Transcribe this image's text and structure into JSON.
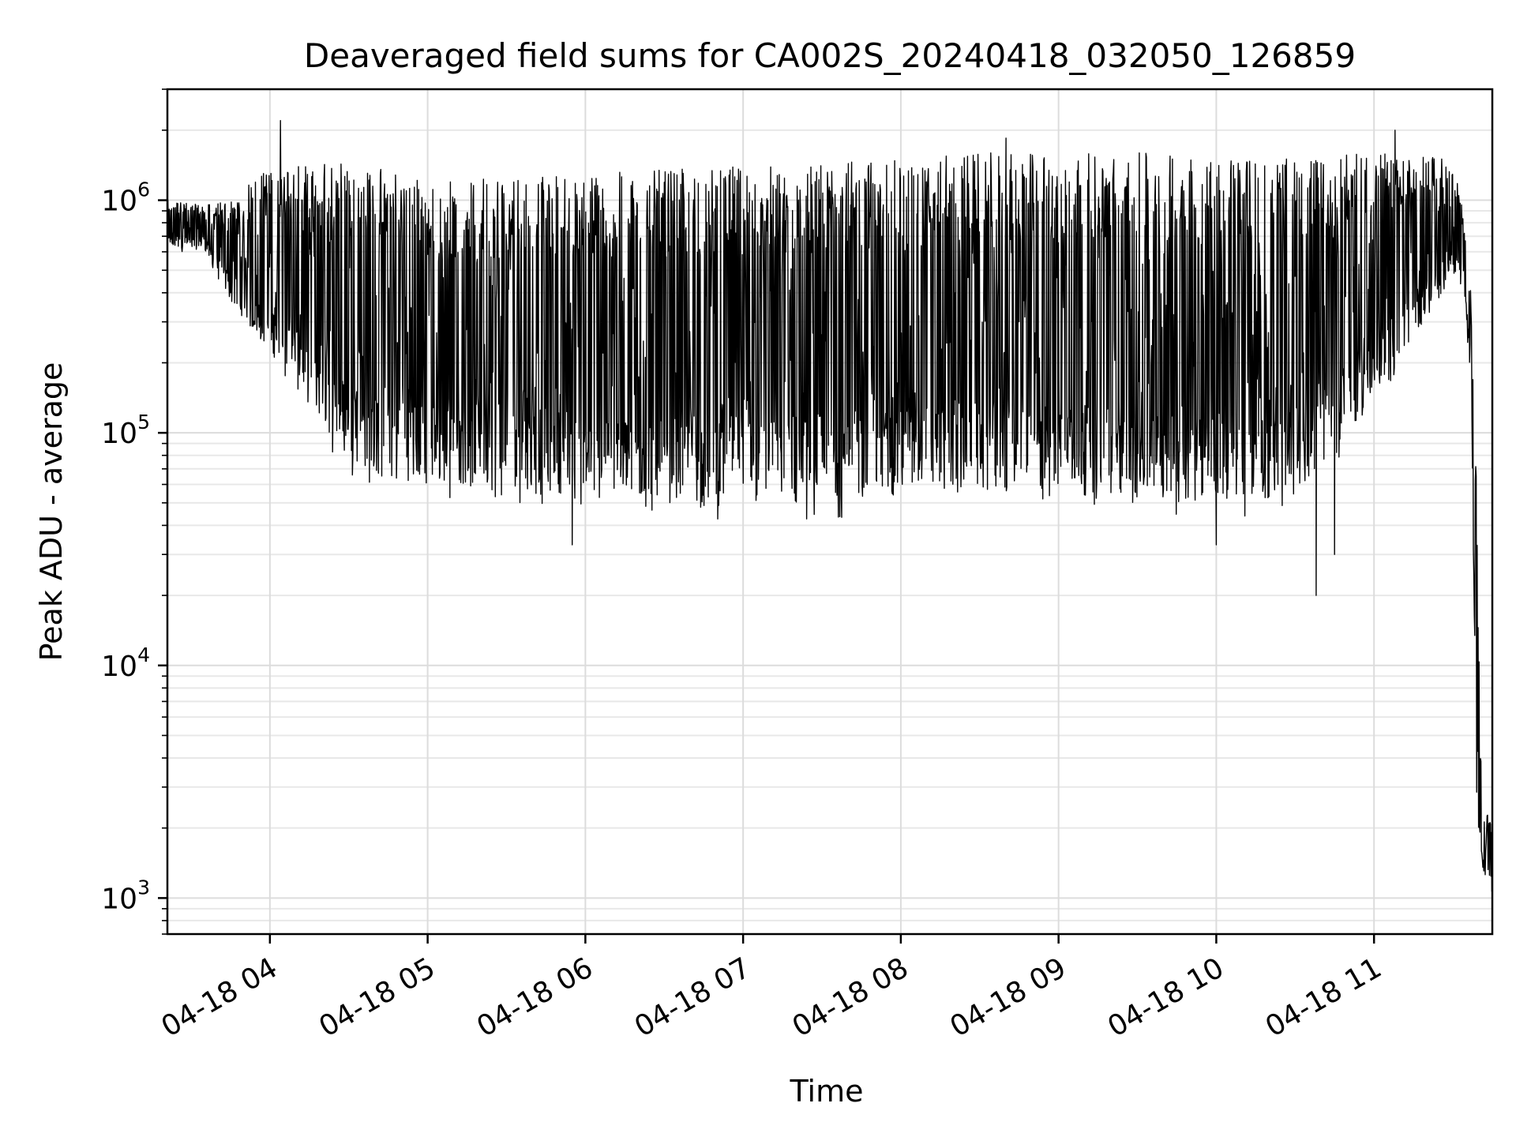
{
  "chart_data": {
    "type": "line",
    "title": "Deaveraged field sums for CA002S_20240418_032050_126859",
    "xlabel": "Time",
    "ylabel": "Peak ADU - average",
    "yscale": "log",
    "ylim": [
      700,
      3000000
    ],
    "xlim": [
      "2024-04-18T03:21:00",
      "2024-04-18T11:45:00"
    ],
    "grid": true,
    "grid_minor": true,
    "line_color": "#000000",
    "x_ticks": [
      "04-18 04",
      "04-18 05",
      "04-18 06",
      "04-18 07",
      "04-18 08",
      "04-18 09",
      "04-18 10",
      "04-18 11"
    ],
    "y_ticks": [
      {
        "value": 1000,
        "base": "10",
        "exp": "3"
      },
      {
        "value": 10000,
        "base": "10",
        "exp": "4"
      },
      {
        "value": 100000,
        "base": "10",
        "exp": "5"
      },
      {
        "value": 1000000,
        "base": "10",
        "exp": "6"
      }
    ],
    "series": [
      {
        "style": "dense oscillating trace",
        "profile": [
          {
            "time": "2024-04-18T03:21:00",
            "low": 600000,
            "high": 1000000
          },
          {
            "time": "2024-04-18T03:35:00",
            "low": 600000,
            "high": 950000
          },
          {
            "time": "2024-04-18T03:45:00",
            "low": 350000,
            "high": 1000000
          },
          {
            "time": "2024-04-18T04:00:00",
            "low": 200000,
            "high": 1400000
          },
          {
            "time": "2024-04-18T04:15:00",
            "low": 130000,
            "high": 1400000
          },
          {
            "time": "2024-04-18T04:25:00",
            "low": 75000,
            "high": 1500000
          },
          {
            "time": "2024-04-18T04:40:00",
            "low": 55000,
            "high": 1500000
          },
          {
            "time": "2024-04-18T05:00:00",
            "low": 52000,
            "high": 1200000
          },
          {
            "time": "2024-04-18T05:30:00",
            "low": 50000,
            "high": 1300000
          },
          {
            "time": "2024-04-18T06:00:00",
            "low": 45000,
            "high": 1300000
          },
          {
            "time": "2024-04-18T06:30:00",
            "low": 42000,
            "high": 1350000
          },
          {
            "time": "2024-04-18T07:00:00",
            "low": 42000,
            "high": 1400000
          },
          {
            "time": "2024-04-18T07:30:00",
            "low": 42000,
            "high": 1450000
          },
          {
            "time": "2024-04-18T08:00:00",
            "low": 45000,
            "high": 1500000
          },
          {
            "time": "2024-04-18T08:30:00",
            "low": 48000,
            "high": 1600000
          },
          {
            "time": "2024-04-18T09:00:00",
            "low": 45000,
            "high": 1600000
          },
          {
            "time": "2024-04-18T09:30:00",
            "low": 45000,
            "high": 1600000
          },
          {
            "time": "2024-04-18T10:00:00",
            "low": 42000,
            "high": 1550000
          },
          {
            "time": "2024-04-18T10:30:00",
            "low": 45000,
            "high": 1500000
          },
          {
            "time": "2024-04-18T11:00:00",
            "low": 120000,
            "high": 1600000
          },
          {
            "time": "2024-04-18T11:30:00",
            "low": 450000,
            "high": 1500000
          },
          {
            "time": "2024-04-18T11:34:00",
            "low": 400000,
            "high": 900000
          },
          {
            "time": "2024-04-18T11:37:00",
            "low": 150000,
            "high": 380000
          },
          {
            "time": "2024-04-18T11:39:00",
            "low": 2100,
            "high": 60000
          },
          {
            "time": "2024-04-18T11:41:00",
            "low": 1300,
            "high": 2700
          },
          {
            "time": "2024-04-18T11:45:00",
            "low": 1000,
            "high": 2000
          }
        ],
        "peaks": [
          {
            "time": "2024-04-18T04:04:00",
            "value": 2200000
          },
          {
            "time": "2024-04-18T08:40:00",
            "value": 1850000
          },
          {
            "time": "2024-04-18T11:08:00",
            "value": 2000000
          }
        ],
        "dips": [
          {
            "time": "2024-04-18T05:55:00",
            "value": 33000
          },
          {
            "time": "2024-04-18T10:00:00",
            "value": 33000
          },
          {
            "time": "2024-04-18T10:38:00",
            "value": 20000
          },
          {
            "time": "2024-04-18T10:45:00",
            "value": 30000
          }
        ]
      }
    ]
  }
}
